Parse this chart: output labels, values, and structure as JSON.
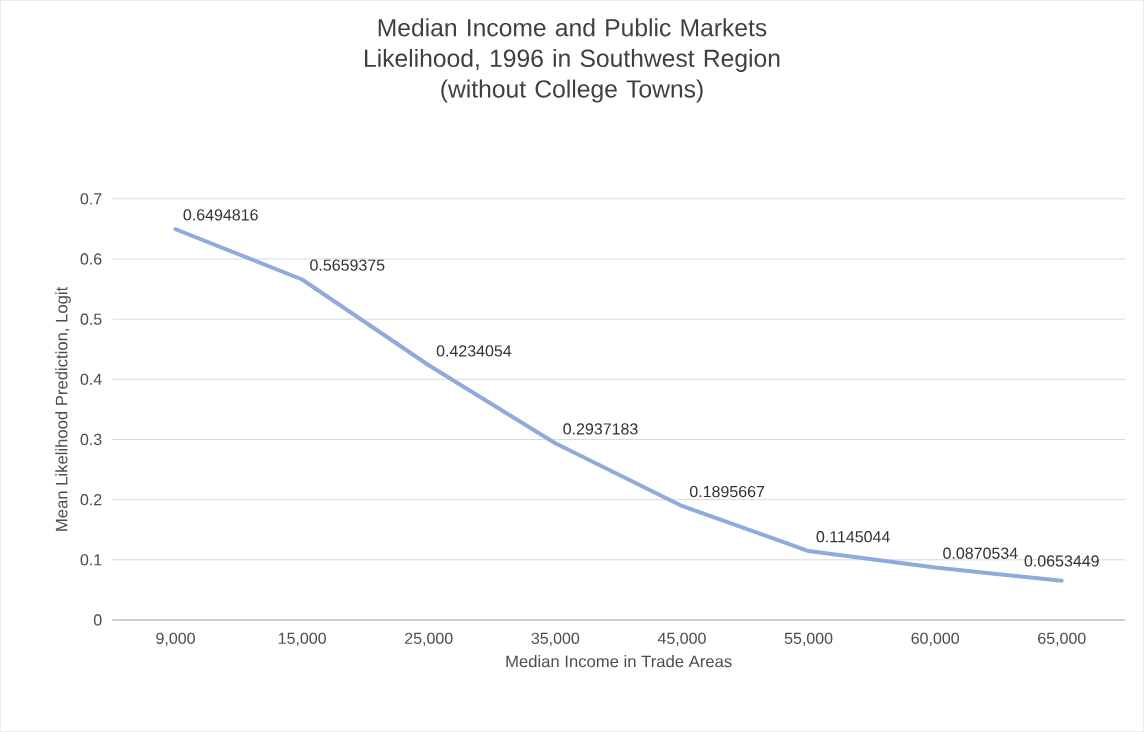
{
  "chart_data": {
    "type": "line",
    "title": "Median Income and Public Markets Likelihood, 1996 in Southwest Region",
    "subtitle": "(without College Towns)",
    "xlabel": "Median Income in Trade Areas",
    "ylabel": "Mean Likelihood Prediction, Logit",
    "categories": [
      "9,000",
      "15,000",
      "25,000",
      "35,000",
      "45,000",
      "55,000",
      "60,000",
      "65,000"
    ],
    "values": [
      0.6494816,
      0.5659375,
      0.4234054,
      0.2937183,
      0.1895667,
      0.1145044,
      0.0870534,
      0.0653449
    ],
    "color": "#8faadc",
    "ylim": [
      0,
      0.7
    ],
    "yticks": [
      0,
      0.1,
      0.2,
      0.3,
      0.4,
      0.5,
      0.6,
      0.7
    ],
    "grid": "y",
    "data_labels": true,
    "marker": "none",
    "line_style": "solid"
  }
}
